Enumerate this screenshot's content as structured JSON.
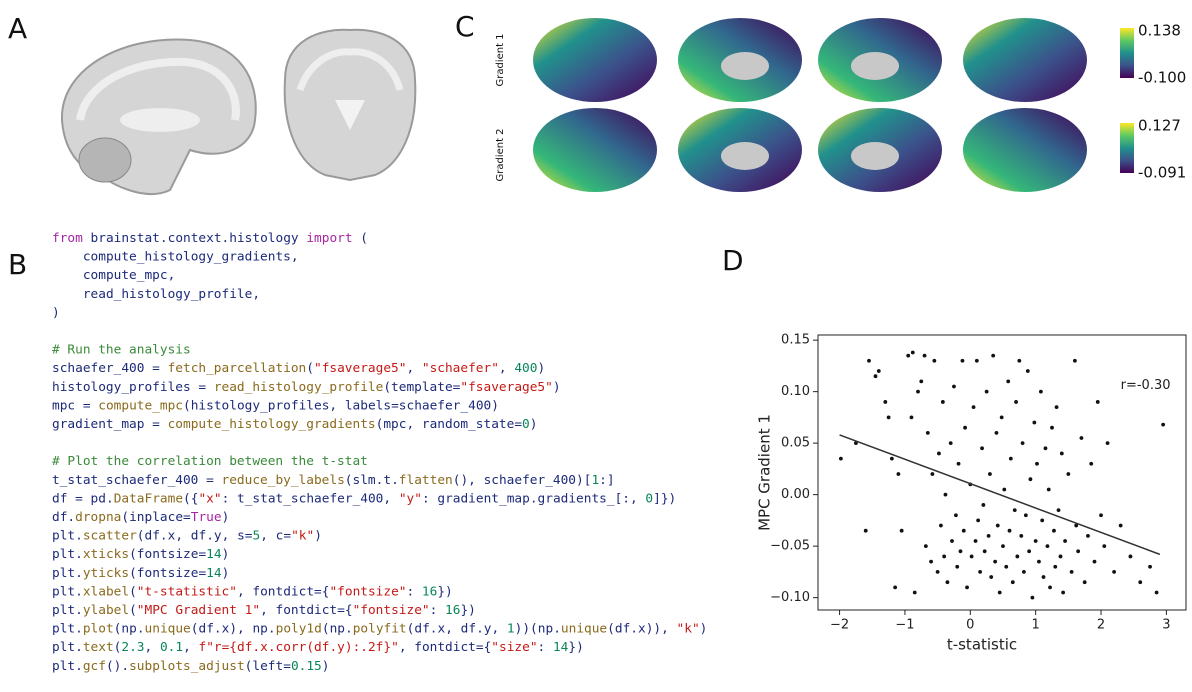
{
  "panels": {
    "a": "A",
    "b": "B",
    "c": "C",
    "d": "D"
  },
  "code": [
    [
      "from brainstat.context.histology import (",
      "    compute_histology_gradients,",
      "    compute_mpc,",
      "    read_histology_profile,",
      ")"
    ],
    [
      "# Run the analysis",
      "schaefer_400 = fetch_parcellation(\"fsaverage5\", \"schaefer\", 400)",
      "histology_profiles = read_histology_profile(template=\"fsaverage5\")",
      "mpc = compute_mpc(histology_profiles, labels=schaefer_400)",
      "gradient_map = compute_histology_gradients(mpc, random_state=0)"
    ],
    [
      "# Plot the correlation between the t-stat",
      "t_stat_schaefer_400 = reduce_by_labels(slm.t.flatten(), schaefer_400)[1:]",
      "df = pd.DataFrame({\"x\": t_stat_schaefer_400, \"y\": gradient_map.gradients_[:, 0]})",
      "df.dropna(inplace=True)",
      "plt.scatter(df.x, df.y, s=5, c=\"k\")",
      "plt.xticks(fontsize=14)",
      "plt.yticks(fontsize=14)",
      "plt.xlabel(\"t-statistic\", fontdict={\"fontsize\": 16})",
      "plt.ylabel(\"MPC Gradient 1\", fontdict={\"fontsize\": 16})",
      "plt.plot(np.unique(df.x), np.poly1d(np.polyfit(df.x, df.y, 1))(np.unique(df.x)), \"k\")",
      "plt.text(2.3, 0.1, f\"r={df.x.corr(df.y):.2f}\", fontdict={\"size\": 14})",
      "plt.gcf().subplots_adjust(left=0.15)"
    ]
  ],
  "brain_maps": [
    {
      "name": "Gradient 1",
      "max": 0.138,
      "min": {
        "value": -0.1,
        "label": "-0.100"
      }
    },
    {
      "name": "Gradient 2",
      "max": 0.127,
      "min": -0.091
    }
  ],
  "chart_data": {
    "type": "scatter",
    "x_label": "t-statistic",
    "y_label": "MPC Gradient 1",
    "annotation": {
      "text": "r=-0.30",
      "x": 2.3,
      "y": 0.1
    },
    "xlim": [
      -2.33,
      3.3
    ],
    "ylim": [
      -0.112,
      0.155
    ],
    "xticks": [
      {
        "value": -2,
        "label": "−2"
      },
      {
        "value": -1,
        "label": "−1"
      },
      0,
      1,
      2,
      3
    ],
    "yticks": [
      {
        "value": -0.1,
        "label": "−0.10"
      },
      {
        "value": -0.05,
        "label": "−0.05"
      },
      {
        "value": 0,
        "label": "0.00"
      },
      0.05,
      {
        "value": 0.1,
        "label": "0.10"
      },
      0.15
    ],
    "color": "#111111",
    "fit_line": {
      "x": [
        -2,
        2.9
      ],
      "y": [
        0.058,
        -0.058
      ]
    },
    "x": [
      -1.98,
      -1.75,
      -1.6,
      -1.55,
      -1.45,
      -1.4,
      -1.3,
      -1.25,
      -1.2,
      -1.15,
      -1.1,
      -1.05,
      -0.95,
      -0.9,
      -0.88,
      -0.85,
      -0.8,
      -0.75,
      -0.7,
      -0.68,
      -0.65,
      -0.6,
      -0.58,
      -0.55,
      -0.5,
      -0.48,
      -0.45,
      -0.42,
      -0.4,
      -0.38,
      -0.35,
      -0.3,
      -0.28,
      -0.25,
      -0.22,
      -0.2,
      -0.18,
      -0.15,
      -0.12,
      -0.1,
      -0.08,
      -0.05,
      0.0,
      0.02,
      0.05,
      0.08,
      0.1,
      0.12,
      0.15,
      0.18,
      0.2,
      0.22,
      0.25,
      0.28,
      0.3,
      0.32,
      0.35,
      0.38,
      0.4,
      0.42,
      0.45,
      0.48,
      0.5,
      0.52,
      0.55,
      0.58,
      0.6,
      0.62,
      0.65,
      0.68,
      0.7,
      0.72,
      0.75,
      0.78,
      0.8,
      0.82,
      0.85,
      0.88,
      0.9,
      0.92,
      0.95,
      0.98,
      1.0,
      1.02,
      1.05,
      1.08,
      1.1,
      1.12,
      1.15,
      1.18,
      1.2,
      1.22,
      1.25,
      1.28,
      1.3,
      1.32,
      1.35,
      1.38,
      1.4,
      1.42,
      1.45,
      1.5,
      1.55,
      1.6,
      1.62,
      1.65,
      1.7,
      1.75,
      1.8,
      1.85,
      1.9,
      1.95,
      2.0,
      2.05,
      2.1,
      2.2,
      2.3,
      2.45,
      2.6,
      2.75,
      2.85,
      2.95
    ],
    "y": [
      0.035,
      0.05,
      -0.035,
      0.13,
      0.115,
      0.12,
      0.09,
      0.075,
      0.035,
      -0.09,
      0.02,
      -0.035,
      0.135,
      0.075,
      0.138,
      -0.095,
      0.1,
      0.11,
      0.135,
      -0.05,
      0.06,
      -0.065,
      0.02,
      0.13,
      -0.075,
      0.04,
      -0.03,
      0.09,
      -0.06,
      0.0,
      -0.085,
      0.05,
      -0.045,
      0.105,
      -0.02,
      -0.07,
      0.03,
      -0.055,
      0.13,
      -0.035,
      0.065,
      -0.09,
      0.01,
      -0.06,
      0.085,
      -0.045,
      0.13,
      -0.025,
      -0.075,
      0.045,
      -0.01,
      -0.055,
      0.1,
      -0.04,
      0.02,
      -0.08,
      0.135,
      -0.065,
      0.06,
      -0.03,
      -0.095,
      0.075,
      -0.05,
      0.005,
      -0.07,
      0.11,
      -0.035,
      0.035,
      -0.085,
      -0.015,
      0.09,
      -0.06,
      0.13,
      -0.04,
      0.05,
      -0.075,
      -0.02,
      0.12,
      -0.055,
      0.015,
      -0.1,
      0.07,
      -0.045,
      0.03,
      -0.065,
      0.1,
      -0.025,
      -0.08,
      0.045,
      -0.05,
      0.005,
      -0.09,
      0.065,
      -0.035,
      -0.07,
      0.085,
      -0.015,
      -0.06,
      0.04,
      -0.095,
      -0.045,
      0.02,
      -0.075,
      0.13,
      -0.03,
      -0.055,
      0.055,
      -0.085,
      -0.04,
      0.03,
      -0.065,
      0.09,
      -0.02,
      -0.05,
      0.05,
      -0.075,
      -0.03,
      -0.06,
      -0.085,
      -0.07,
      -0.095,
      0.068
    ]
  }
}
